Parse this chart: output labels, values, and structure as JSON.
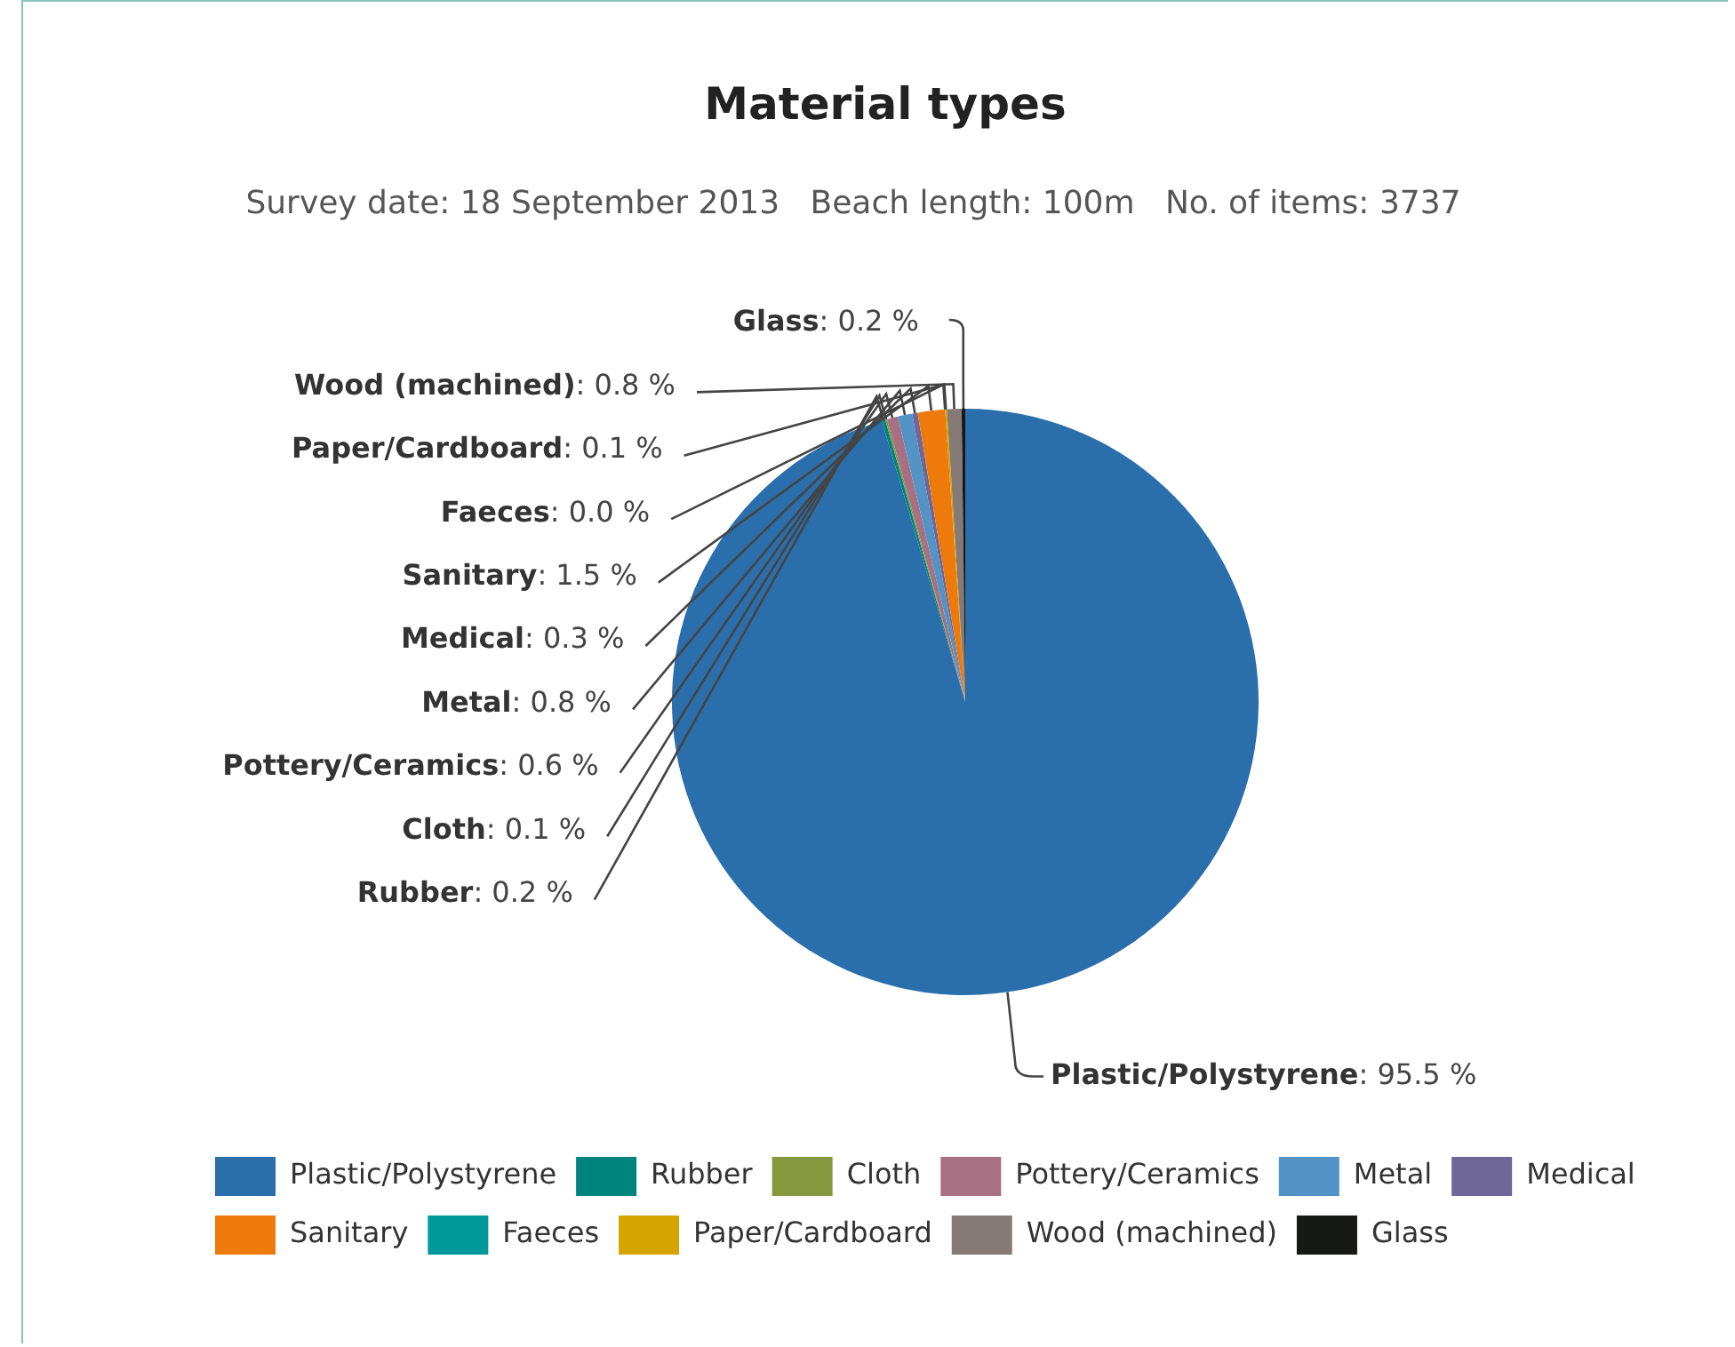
{
  "chart_data": {
    "type": "pie",
    "title": "Material types",
    "subtitle": "Survey date: 18 September 2013   Beach length: 100m   No. of items: 3737",
    "categories": [
      "Plastic/Polystyrene",
      "Rubber",
      "Cloth",
      "Pottery/Ceramics",
      "Metal",
      "Medical",
      "Sanitary",
      "Faeces",
      "Paper/Cardboard",
      "Wood (machined)",
      "Glass"
    ],
    "values": [
      95.5,
      0.2,
      0.1,
      0.6,
      0.8,
      0.3,
      1.5,
      0.0,
      0.1,
      0.8,
      0.2
    ],
    "colors": [
      "#2a6eab",
      "#00857e",
      "#87973f",
      "#a87083",
      "#5393c6",
      "#6e6797",
      "#ee7a0c",
      "#00999b",
      "#d4a400",
      "#857a76",
      "#161915"
    ],
    "value_labels": [
      ": 95.5 %",
      ": 0.2 %",
      ": 0.1 %",
      ": 0.6 %",
      ": 0.8 %",
      ": 0.3 %",
      ": 1.5 %",
      ": 0.0 %",
      ": 0.1 %",
      ": 0.8 %",
      ": 0.2 %"
    ],
    "legend": "bottom"
  }
}
